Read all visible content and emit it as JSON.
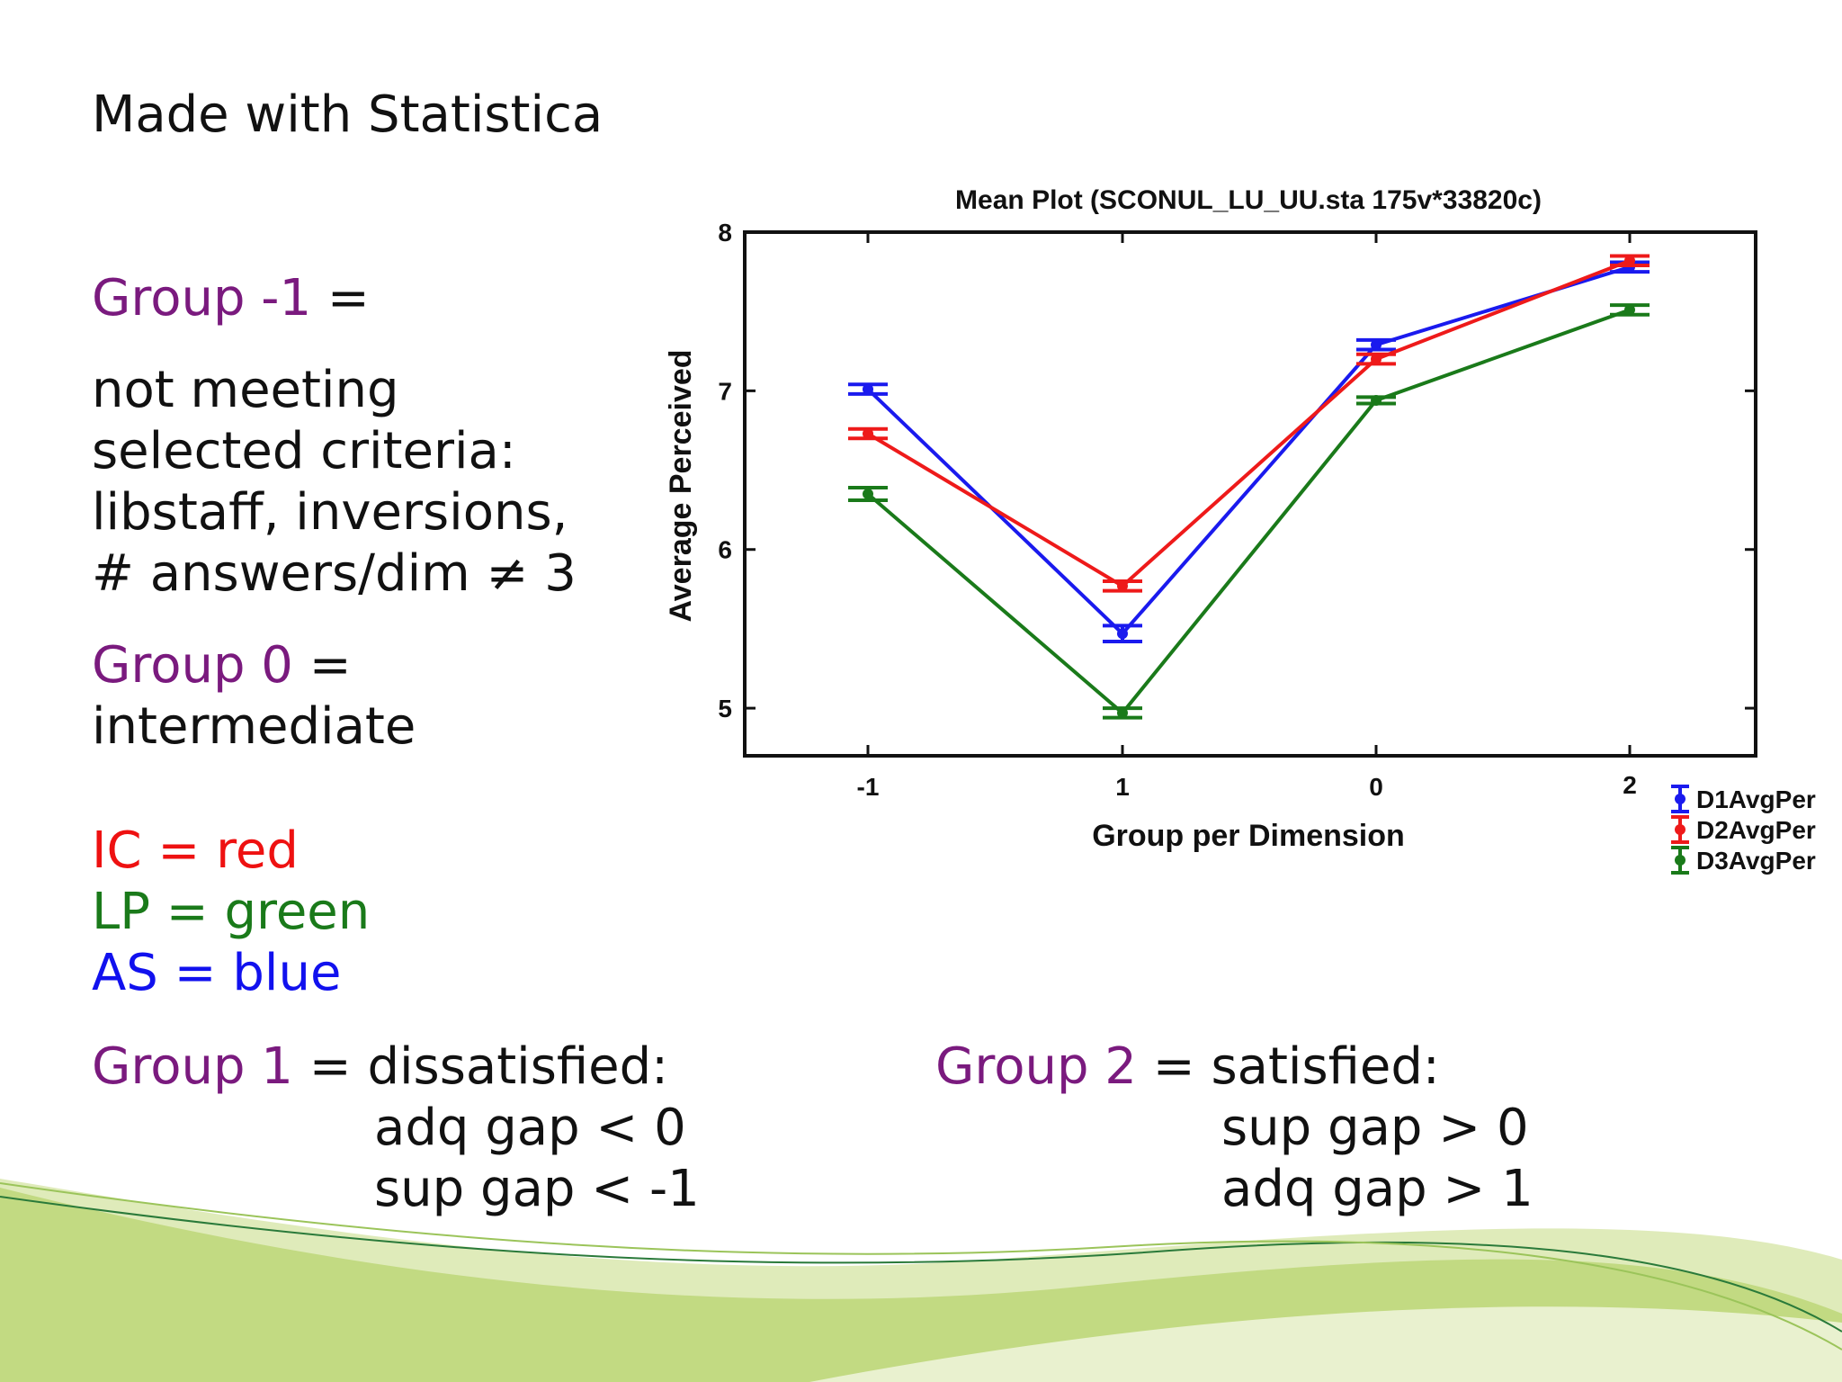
{
  "slide": {
    "heading": "Made with Statistica",
    "group_neg1": {
      "label": "Group -1",
      "eq": " ="
    },
    "group_neg1_desc": [
      "not meeting",
      "selected criteria:",
      "libstaff, inversions,",
      "# answers/dim ≠ 3"
    ],
    "group0": {
      "label": "Group 0",
      "eq": " =",
      "desc": "intermediate"
    },
    "legend_map": [
      {
        "text": "IC = red",
        "color": "#ee1111"
      },
      {
        "text": "LP = green",
        "color": "#1a7a1a"
      },
      {
        "text": "AS = blue",
        "color": "#1111ee"
      }
    ],
    "group1": {
      "label": "Group 1",
      "rest": " = dissatisfied:",
      "lines": [
        "adq gap < 0",
        "sup gap < -1"
      ]
    },
    "group2": {
      "label": "Group 2",
      "rest": " = satisfied:",
      "lines": [
        "sup gap > 0",
        "adq gap > 1"
      ]
    }
  },
  "colors": {
    "purple": "#7a1a7e",
    "D1": "#1a1aee",
    "D2": "#ee1a1a",
    "D3": "#1a7a1a",
    "swoosh_light": "#c7dd8a",
    "swoosh_dark": "#8fbf3a"
  },
  "chart_data": {
    "type": "line",
    "title": "Mean Plot (SCONUL_LU_UU.sta 175v*33820c)",
    "xlabel": "Group per Dimension",
    "ylabel": "Average Perceived",
    "categories": [
      "-1",
      "1",
      "0",
      "2"
    ],
    "ylim": [
      4.7,
      8
    ],
    "yticks": [
      5,
      6,
      7,
      8
    ],
    "legend_position": "bottom-right, outside plot",
    "series": [
      {
        "name": "D1AvgPer",
        "color": "#1a1aee",
        "values": [
          7.01,
          5.47,
          7.29,
          7.78
        ],
        "error": [
          0.03,
          0.05,
          0.03,
          0.03
        ]
      },
      {
        "name": "D2AvgPer",
        "color": "#ee1a1a",
        "values": [
          6.73,
          5.77,
          7.2,
          7.82
        ],
        "error": [
          0.03,
          0.03,
          0.03,
          0.03
        ]
      },
      {
        "name": "D3AvgPer",
        "color": "#1a7a1a",
        "values": [
          6.35,
          4.97,
          6.94,
          7.51
        ],
        "error": [
          0.04,
          0.03,
          0.02,
          0.03
        ]
      }
    ]
  }
}
